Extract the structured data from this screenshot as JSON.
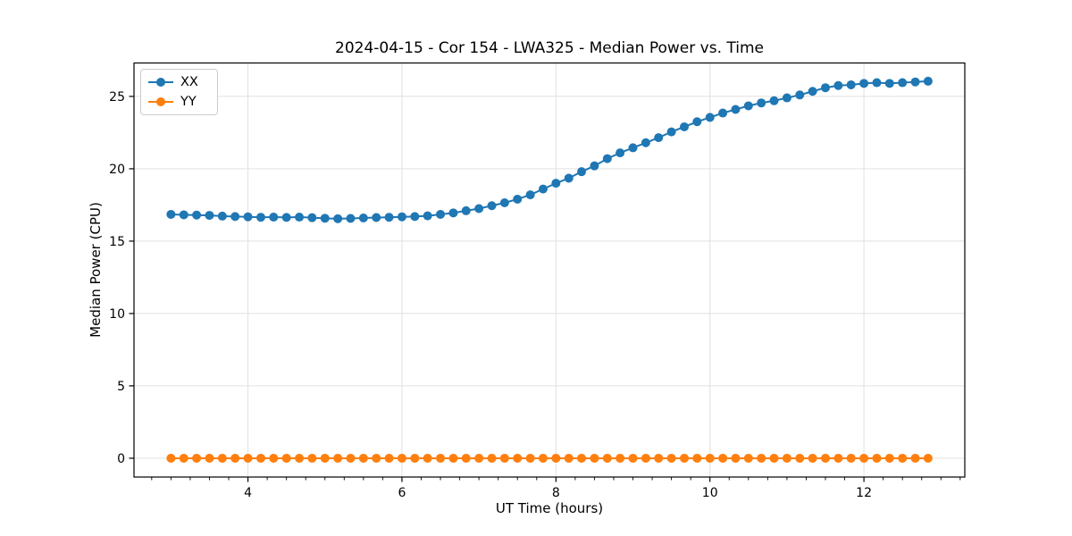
{
  "chart_data": {
    "type": "line",
    "title": "2024-04-15 - Cor 154 - LWA325 - Median Power vs. Time",
    "xlabel": "UT Time (hours)",
    "ylabel": "Median Power (CPU)",
    "xlim": [
      2.52,
      13.31
    ],
    "ylim": [
      -1.3,
      27.31
    ],
    "xticks": [
      4,
      6,
      8,
      10,
      12
    ],
    "yticks": [
      0,
      5,
      10,
      15,
      20,
      25
    ],
    "x_minor_step": 0.25,
    "grid": true,
    "legend_position": "upper left",
    "x": [
      3.0,
      3.167,
      3.333,
      3.5,
      3.667,
      3.833,
      4.0,
      4.167,
      4.333,
      4.5,
      4.667,
      4.833,
      5.0,
      5.167,
      5.333,
      5.5,
      5.667,
      5.833,
      6.0,
      6.167,
      6.333,
      6.5,
      6.667,
      6.833,
      7.0,
      7.167,
      7.333,
      7.5,
      7.667,
      7.833,
      8.0,
      8.167,
      8.333,
      8.5,
      8.667,
      8.833,
      9.0,
      9.167,
      9.333,
      9.5,
      9.667,
      9.833,
      10.0,
      10.167,
      10.333,
      10.5,
      10.667,
      10.833,
      11.0,
      11.167,
      11.333,
      11.5,
      11.667,
      11.833,
      12.0,
      12.167,
      12.333,
      12.5,
      12.667,
      12.833
    ],
    "series": [
      {
        "name": "XX",
        "color": "#1f77b4",
        "values": [
          16.85,
          16.82,
          16.8,
          16.78,
          16.73,
          16.7,
          16.68,
          16.65,
          16.66,
          16.64,
          16.66,
          16.62,
          16.58,
          16.55,
          16.57,
          16.6,
          16.63,
          16.65,
          16.68,
          16.7,
          16.75,
          16.85,
          16.95,
          17.1,
          17.25,
          17.45,
          17.65,
          17.9,
          18.2,
          18.6,
          19.0,
          19.35,
          19.8,
          20.2,
          20.7,
          21.1,
          21.45,
          21.8,
          22.15,
          22.55,
          22.9,
          23.25,
          23.55,
          23.85,
          24.1,
          24.35,
          24.55,
          24.7,
          24.9,
          25.1,
          25.35,
          25.6,
          25.75,
          25.8,
          25.9,
          25.95,
          25.9,
          25.95,
          26.0,
          26.05
        ]
      },
      {
        "name": "YY",
        "color": "#ff7f0e",
        "values": [
          0,
          0,
          0,
          0,
          0,
          0,
          0,
          0,
          0,
          0,
          0,
          0,
          0,
          0,
          0,
          0,
          0,
          0,
          0,
          0,
          0,
          0,
          0,
          0,
          0,
          0,
          0,
          0,
          0,
          0,
          0,
          0,
          0,
          0,
          0,
          0,
          0,
          0,
          0,
          0,
          0,
          0,
          0,
          0,
          0,
          0,
          0,
          0,
          0,
          0,
          0,
          0,
          0,
          0,
          0,
          0,
          0,
          0,
          0,
          0
        ]
      }
    ],
    "colors": {
      "grid": "#e0e0e0",
      "spine": "#000000",
      "tick": "#000000",
      "text": "#000000"
    }
  }
}
